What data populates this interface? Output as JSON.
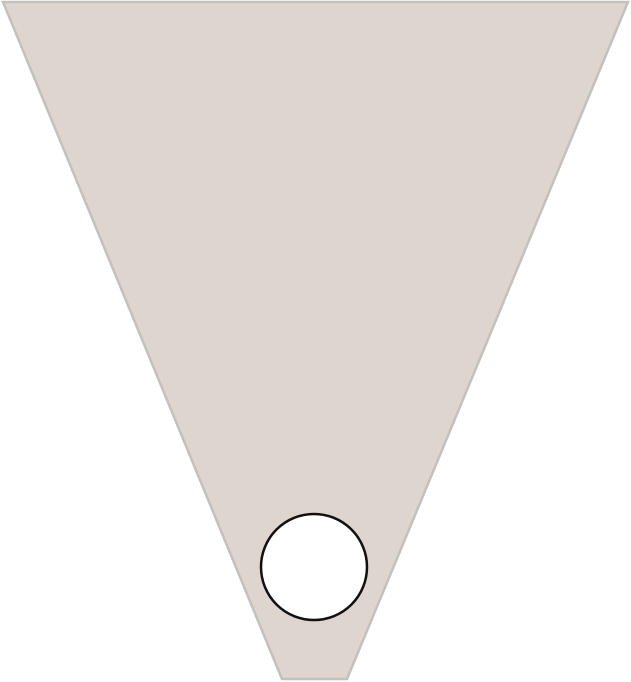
{
  "colors": {
    "background": "#ffffff",
    "pennant_fill": "#ded5ce",
    "pennant_stroke": "#c4c0bd",
    "hole_fill": "#ffffff",
    "hole_stroke": "#111111"
  },
  "shapes": {
    "pennant": "trapezoid-pennant",
    "hole": "circle-hole"
  }
}
